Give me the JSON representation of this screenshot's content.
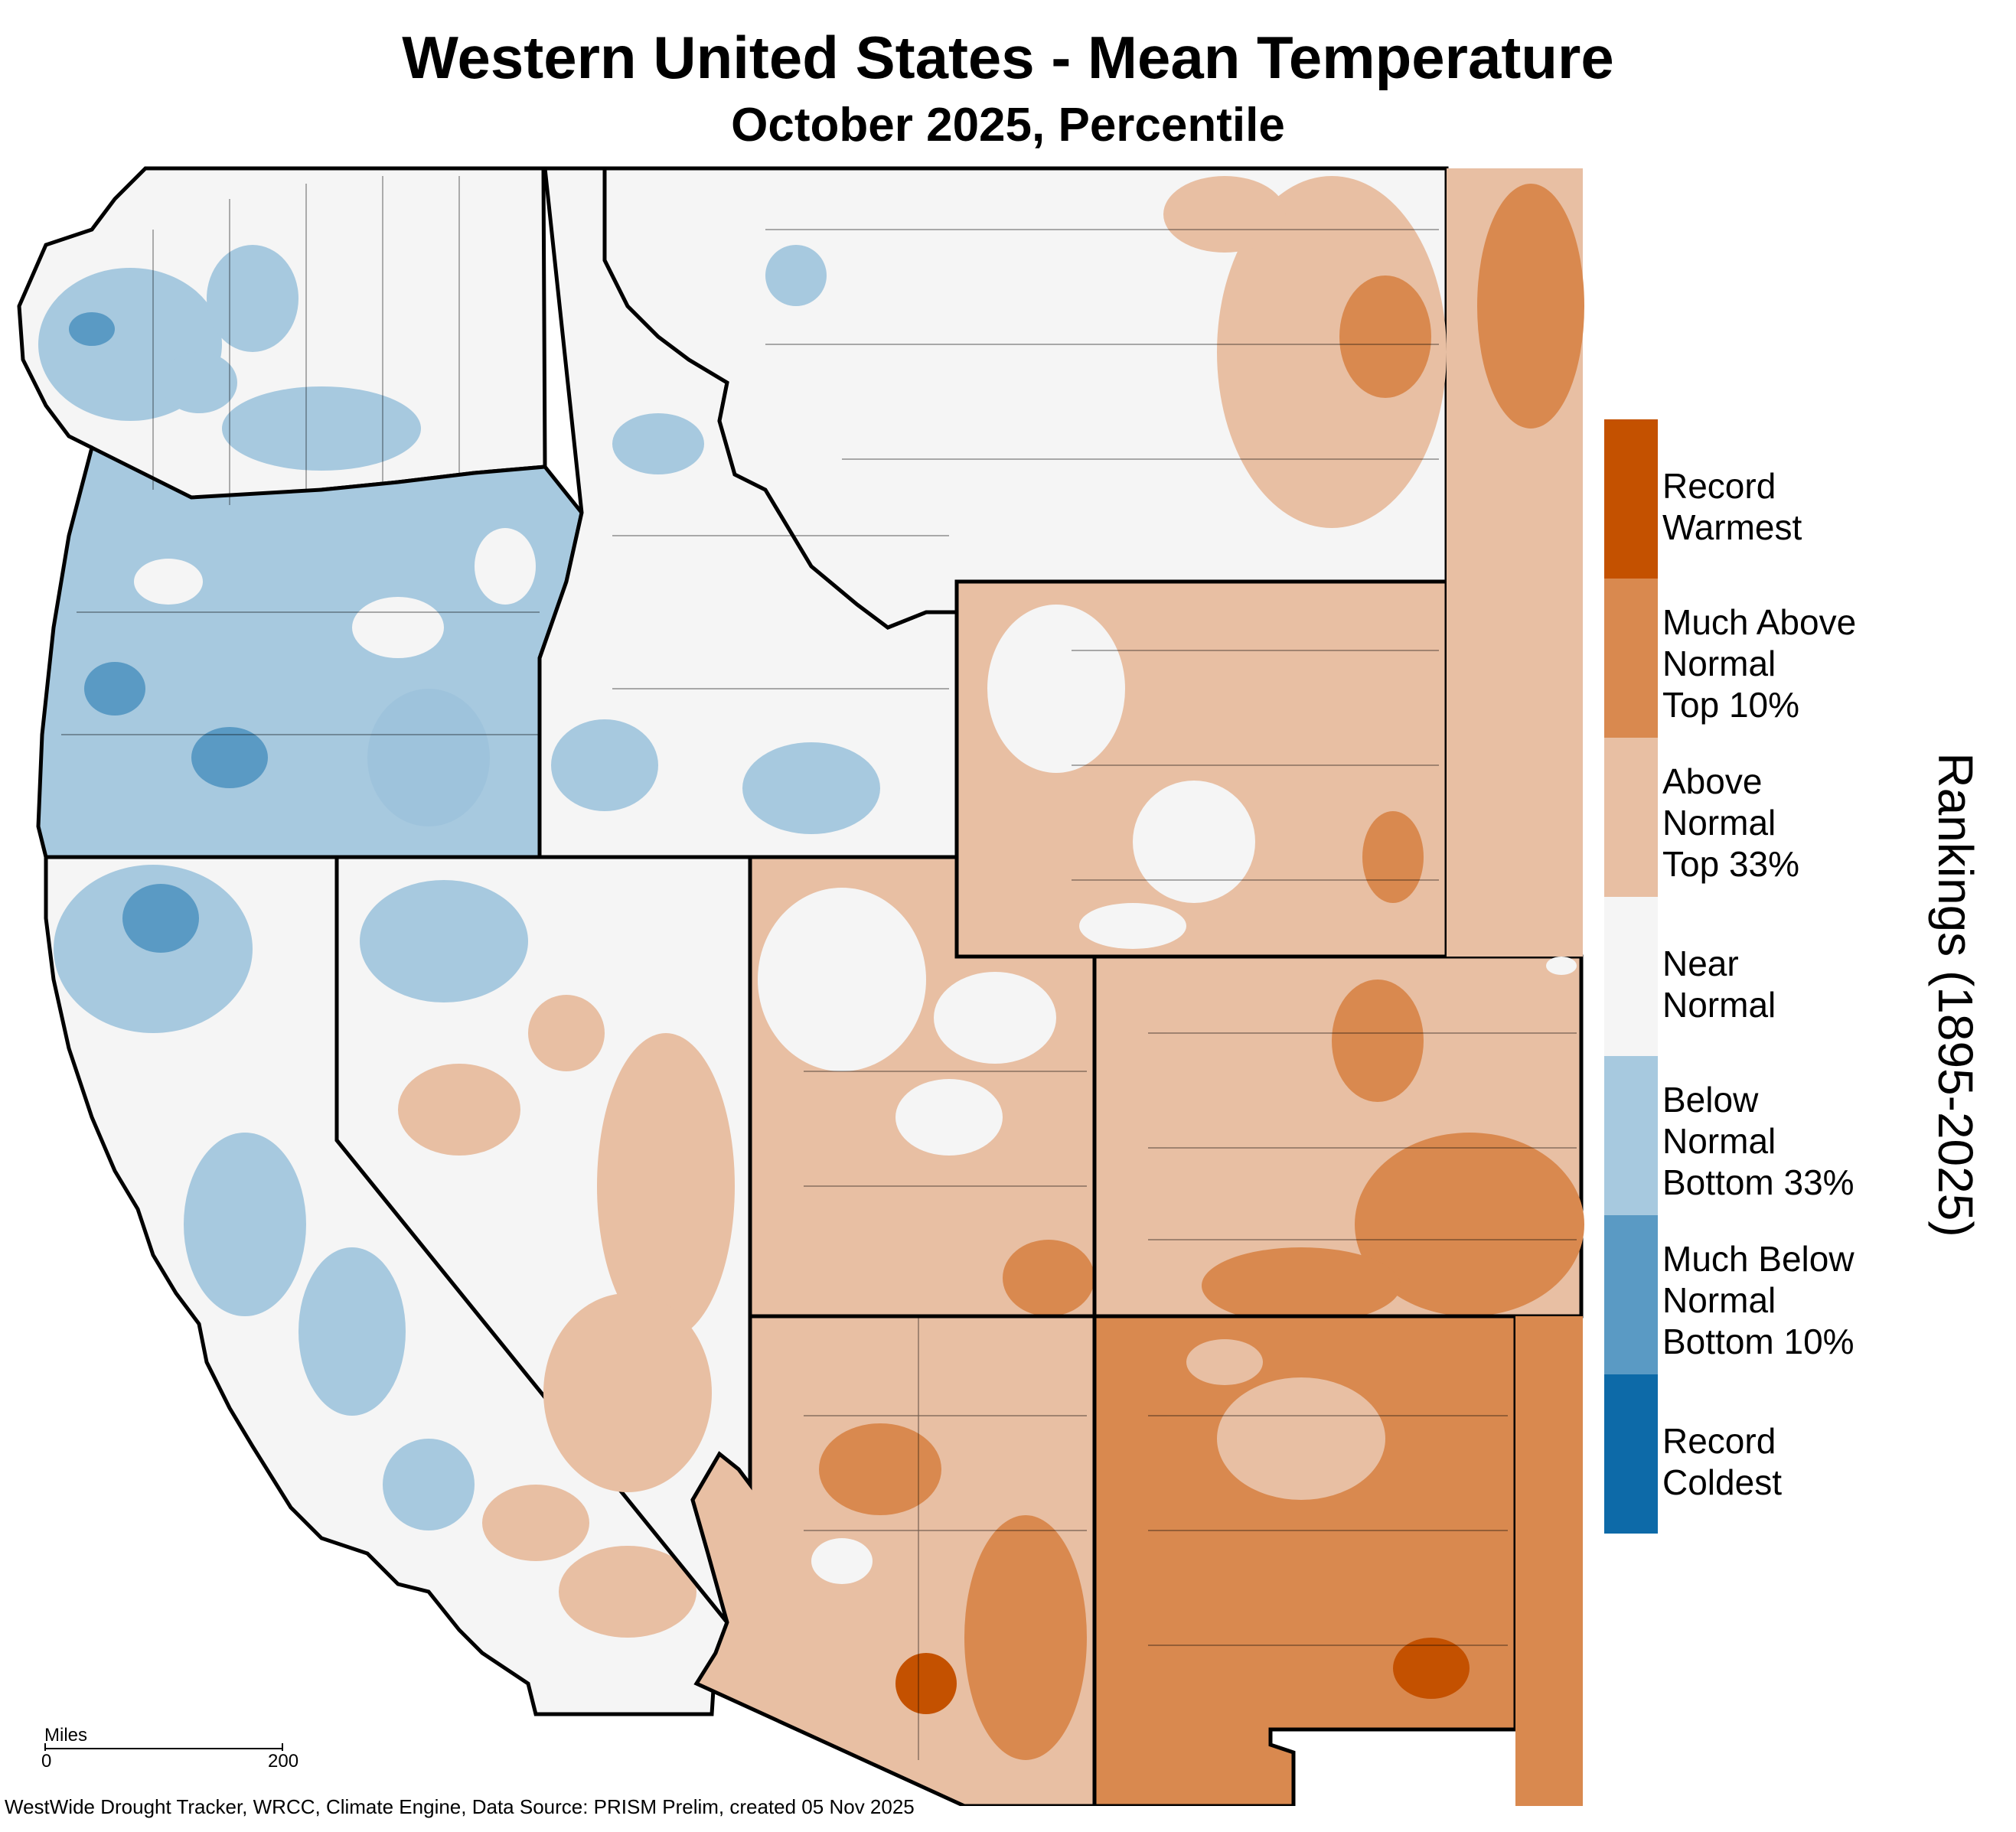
{
  "title": "Western United States - Mean Temperature",
  "subtitle": "October 2025, Percentile",
  "legend_title": "Rankings (1895-2025)",
  "legend": [
    {
      "label": "Record\nWarmest",
      "color": "#c45100"
    },
    {
      "label": "Much Above\nNormal\nTop 10%",
      "color": "#d9894f"
    },
    {
      "label": "Above\nNormal\nTop 33%",
      "color": "#e8bfa3"
    },
    {
      "label": "Near\nNormal",
      "color": "#f5f5f5"
    },
    {
      "label": "Below\nNormal\nBottom 33%",
      "color": "#a7c9df"
    },
    {
      "label": "Much Below\nNormal\nBottom 10%",
      "color": "#5a9ac4"
    },
    {
      "label": "Record\nColdest",
      "color": "#0d6aa8"
    }
  ],
  "scale_bar": {
    "title": "Miles",
    "min_label": "0",
    "max_label": "200"
  },
  "source": "WestWide Drought Tracker, WRCC, Climate Engine, Data Source: PRISM Prelim, created 05 Nov 2025"
}
